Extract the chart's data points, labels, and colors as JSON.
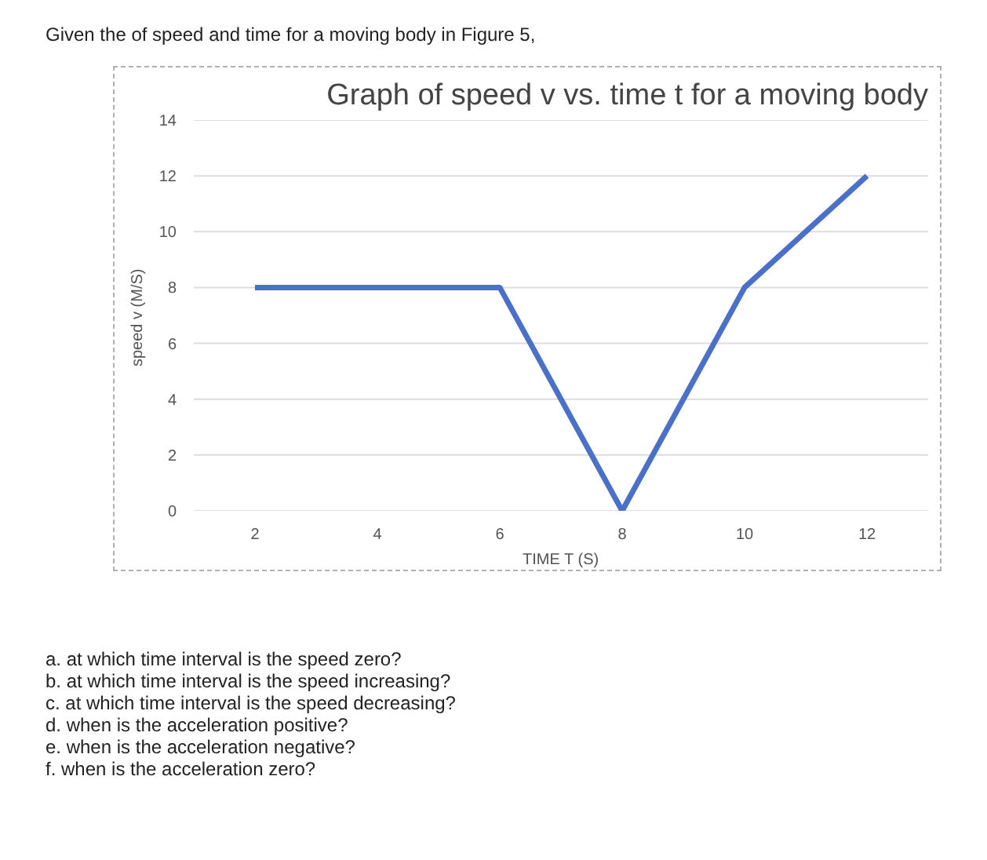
{
  "chart_data": {
    "type": "line",
    "title": "Graph of speed v vs. time t for a moving body",
    "xlabel": "TIME T (S)",
    "ylabel": "speed  v (M/S)",
    "x": [
      2,
      4,
      6,
      8,
      10,
      12
    ],
    "series": [
      {
        "color": "#4a70c9",
        "values": [
          8,
          8,
          8,
          0,
          8,
          12
        ]
      }
    ],
    "xlim": [
      1,
      13
    ],
    "xticks": [
      2,
      4,
      6,
      8,
      10,
      12
    ],
    "ylim": [
      0,
      14
    ],
    "yticks": [
      0,
      2,
      4,
      6,
      8,
      10,
      12,
      14
    ],
    "grid": "y",
    "marker": "none",
    "line_style": "solid",
    "annotations": [
      "Given the of speed and time for a moving body in Figure 5,",
      "a. at which time interval is the speed zero?",
      "b. at which time interval is the speed increasing?",
      "c. at which time interval is the speed decreasing?",
      "d. when is the acceleration positive?",
      "e. when is the acceleration negative?",
      "f. when is the acceleration zero?"
    ]
  }
}
